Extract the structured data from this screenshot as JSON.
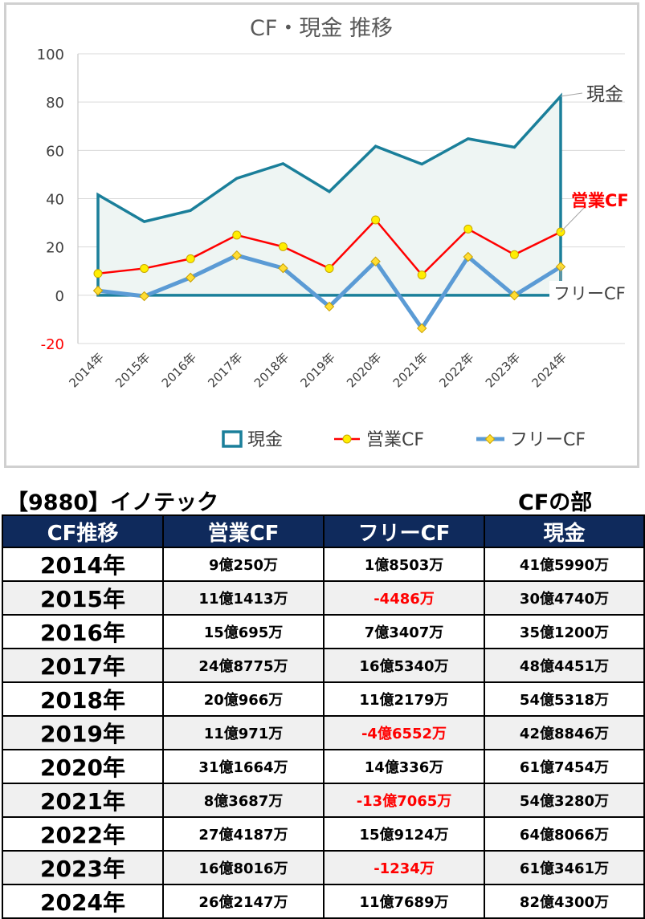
{
  "chart_data": {
    "type": "line",
    "title": "CF・現金 推移",
    "categories": [
      "2014年",
      "2015年",
      "2016年",
      "2017年",
      "2018年",
      "2019年",
      "2020年",
      "2021年",
      "2022年",
      "2023年",
      "2024年"
    ],
    "ylim": [
      -20,
      100
    ],
    "yticks": [
      100,
      80,
      60,
      40,
      20,
      0,
      -20
    ],
    "grid": true,
    "legend_position": "bottom",
    "series": [
      {
        "name": "現金",
        "color": "#1a7f9a",
        "style": "area-line",
        "values": [
          41.6,
          30.5,
          35.1,
          48.4,
          54.5,
          42.9,
          61.7,
          54.3,
          64.8,
          61.3,
          82.4
        ]
      },
      {
        "name": "営業CF",
        "color": "#ff0000",
        "style": "line-marker",
        "values": [
          9.0,
          11.1,
          15.1,
          24.9,
          20.1,
          11.1,
          31.2,
          8.4,
          27.4,
          16.8,
          26.2
        ]
      },
      {
        "name": "フリーCF",
        "color": "#5b9bd5",
        "style": "line-marker",
        "values": [
          1.9,
          -0.4,
          7.3,
          16.5,
          11.2,
          -4.7,
          14.0,
          -13.7,
          15.9,
          -0.1,
          11.8
        ]
      }
    ],
    "end_labels": [
      "現金",
      "営業CF",
      "フリーCF"
    ]
  },
  "company_title": "【9880】イノテック",
  "section_title": "CFの部",
  "table": {
    "headers": [
      "CF推移",
      "営業CF",
      "フリーCF",
      "現金"
    ],
    "rows": [
      {
        "year": "2014年",
        "op": "9億250万",
        "free": "1億8503万",
        "cash": "41億5990万",
        "free_neg": false
      },
      {
        "year": "2015年",
        "op": "11億1413万",
        "free": "-4486万",
        "cash": "30億4740万",
        "free_neg": true
      },
      {
        "year": "2016年",
        "op": "15億695万",
        "free": "7億3407万",
        "cash": "35億1200万",
        "free_neg": false
      },
      {
        "year": "2017年",
        "op": "24億8775万",
        "free": "16億5340万",
        "cash": "48億4451万",
        "free_neg": false
      },
      {
        "year": "2018年",
        "op": "20億966万",
        "free": "11億2179万",
        "cash": "54億5318万",
        "free_neg": false
      },
      {
        "year": "2019年",
        "op": "11億971万",
        "free": "-4億6552万",
        "cash": "42億8846万",
        "free_neg": true
      },
      {
        "year": "2020年",
        "op": "31億1664万",
        "free": "14億336万",
        "cash": "61億7454万",
        "free_neg": false
      },
      {
        "year": "2021年",
        "op": "8億3687万",
        "free": "-13億7065万",
        "cash": "54億3280万",
        "free_neg": true
      },
      {
        "year": "2022年",
        "op": "27億4187万",
        "free": "15億9124万",
        "cash": "64億8066万",
        "free_neg": false
      },
      {
        "year": "2023年",
        "op": "16億8016万",
        "free": "-1234万",
        "cash": "61億3461万",
        "free_neg": true
      },
      {
        "year": "2024年",
        "op": "26億2147万",
        "free": "11億7689万",
        "cash": "82億4300万",
        "free_neg": false
      }
    ]
  }
}
